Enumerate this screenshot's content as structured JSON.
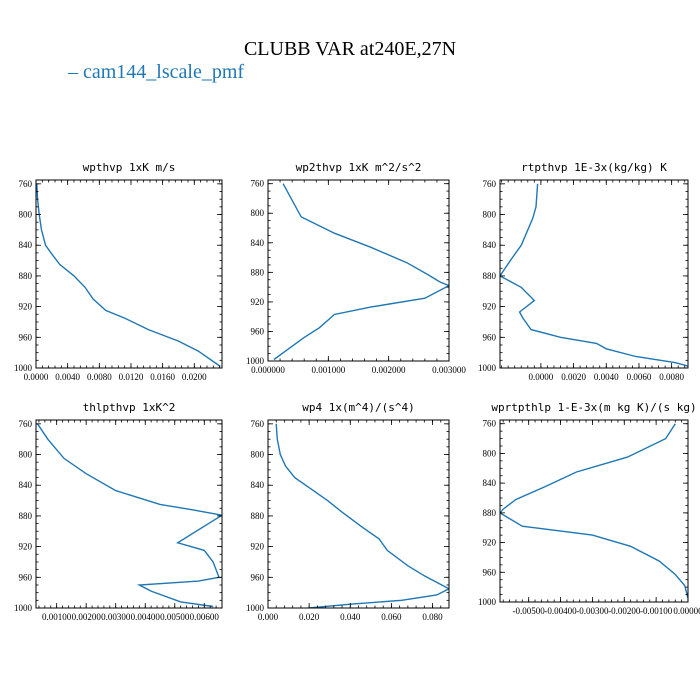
{
  "figure": {
    "title": "CLUBB VAR at240E,27N",
    "legend_label": "– cam144_lscale_pmf",
    "series_color": "#1f77b4"
  },
  "chart_data": [
    {
      "type": "line",
      "title": "wpthvp  1xK m/s",
      "xlim": [
        0,
        0.0235
      ],
      "ylim": [
        1000,
        755
      ],
      "x_ticks": [
        0,
        0.004,
        0.008,
        0.012,
        0.016,
        0.02
      ],
      "x_tick_labels": [
        "0.0000",
        "0.0040",
        "0.0080",
        "0.0120",
        "0.0160",
        "0.0200"
      ],
      "y_ticks": [
        760,
        800,
        840,
        880,
        920,
        960,
        1000
      ],
      "y_tick_labels": [
        "760",
        "800",
        "840",
        "880",
        "920",
        "960",
        "1000"
      ],
      "series": [
        {
          "x": [
            0.0001,
            0.0002,
            0.0004,
            0.0007,
            0.0012,
            0.0019,
            0.003,
            0.0048,
            0.0062,
            0.0072,
            0.0088,
            0.0112,
            0.0142,
            0.018,
            0.0205,
            0.0233
          ],
          "y": [
            760,
            780,
            800,
            820,
            840,
            850,
            865,
            880,
            895,
            910,
            925,
            935,
            950,
            965,
            978,
            998
          ]
        }
      ]
    },
    {
      "type": "line",
      "title": "wp2thvp  1xK m^2/s^2",
      "xlim": [
        0,
        0.003
      ],
      "ylim": [
        1000,
        755
      ],
      "x_ticks": [
        0,
        0.001,
        0.002,
        0.003
      ],
      "x_tick_labels": [
        "0.000000",
        "0.001000",
        "0.002000",
        "0.003000"
      ],
      "y_ticks": [
        760,
        800,
        840,
        880,
        920,
        960,
        1000
      ],
      "y_tick_labels": [
        "760",
        "800",
        "840",
        "880",
        "920",
        "960",
        "1000"
      ],
      "series": [
        {
          "x": [
            0.00025,
            0.00055,
            0.0011,
            0.0017,
            0.0023,
            0.00265,
            0.00285,
            0.003,
            0.0026,
            0.0017,
            0.0011,
            0.00085,
            0.0006,
            0.00035,
            0.0001
          ],
          "y": [
            760,
            805,
            827,
            846,
            867,
            883,
            893,
            898,
            915,
            927,
            937,
            955,
            968,
            983,
            998
          ]
        }
      ]
    },
    {
      "type": "line",
      "title": "rtpthvp  1E-3x(kg/kg) K",
      "xlim": [
        -0.0025,
        0.009
      ],
      "ylim": [
        1000,
        755
      ],
      "x_ticks": [
        0,
        0.002,
        0.004,
        0.006,
        0.008
      ],
      "x_tick_labels": [
        "0.0000",
        "0.0020",
        "0.0040",
        "0.0060",
        "0.0080"
      ],
      "y_ticks": [
        760,
        800,
        840,
        880,
        920,
        960,
        1000
      ],
      "y_tick_labels": [
        "760",
        "800",
        "840",
        "880",
        "920",
        "960",
        "1000"
      ],
      "series": [
        {
          "x": [
            -0.0002,
            -0.0003,
            -0.0005,
            -0.0009,
            -0.0012,
            -0.0018,
            -0.0025,
            -0.0012,
            -0.0004,
            -0.0013,
            -0.0011,
            -0.0006,
            0.0012,
            0.0034,
            0.004,
            0.0058,
            0.0082,
            0.0091
          ],
          "y": [
            760,
            790,
            805,
            825,
            840,
            858,
            880,
            895,
            912,
            927,
            935,
            950,
            960,
            968,
            975,
            985,
            993,
            998
          ]
        }
      ]
    },
    {
      "type": "line",
      "title": "thlpthvp  1xK^2",
      "xlim": [
        0.0003,
        0.0066
      ],
      "ylim": [
        1000,
        755
      ],
      "x_ticks": [
        0.001,
        0.002,
        0.003,
        0.004,
        0.005,
        0.006
      ],
      "x_tick_labels": [
        "0.00100",
        "0.00200",
        "0.00300",
        "0.00400",
        "0.00500",
        "0.00600"
      ],
      "y_ticks": [
        760,
        800,
        840,
        880,
        920,
        960,
        1000
      ],
      "y_tick_labels": [
        "760",
        "800",
        "840",
        "880",
        "920",
        "960",
        "1000"
      ],
      "series": [
        {
          "x": [
            0.00035,
            0.0007,
            0.00125,
            0.002,
            0.003,
            0.0045,
            0.0056,
            0.0066,
            0.0051,
            0.006,
            0.0063,
            0.0065,
            0.0058,
            0.0038,
            0.0042,
            0.0052,
            0.0063
          ],
          "y": [
            760,
            780,
            805,
            825,
            847,
            865,
            872,
            879,
            915,
            925,
            940,
            960,
            965,
            970,
            978,
            992,
            998
          ]
        }
      ]
    },
    {
      "type": "line",
      "title": "wp4  1x(m^4)/(s^4)",
      "xlim": [
        0,
        0.088
      ],
      "ylim": [
        1000,
        755
      ],
      "x_ticks": [
        0,
        0.02,
        0.04,
        0.06,
        0.08
      ],
      "x_tick_labels": [
        "0.000",
        "0.020",
        "0.040",
        "0.060",
        "0.080"
      ],
      "y_ticks": [
        760,
        800,
        840,
        880,
        920,
        960,
        1000
      ],
      "y_tick_labels": [
        "760",
        "800",
        "840",
        "880",
        "920",
        "960",
        "1000"
      ],
      "series": [
        {
          "x": [
            0.004,
            0.0045,
            0.006,
            0.0085,
            0.013,
            0.021,
            0.029,
            0.036,
            0.046,
            0.054,
            0.058,
            0.068,
            0.076,
            0.083,
            0.088,
            0.082,
            0.065,
            0.04,
            0.02
          ],
          "y": [
            760,
            780,
            800,
            815,
            830,
            845,
            860,
            875,
            895,
            910,
            925,
            945,
            958,
            968,
            975,
            983,
            990,
            995,
            1000
          ]
        }
      ]
    },
    {
      "type": "line",
      "title": "wprtpthlp  1-E-3x(m kg K)/(s kg)",
      "xlim": [
        -0.0059,
        0.0
      ],
      "ylim": [
        1000,
        755
      ],
      "x_ticks": [
        -0.005,
        -0.004,
        -0.003,
        -0.002,
        -0.001,
        0
      ],
      "x_tick_labels": [
        "-0.00500",
        "-0.00400",
        "-0.00300",
        "-0.00200",
        "-0.00100",
        "0.00000"
      ],
      "y_ticks": [
        760,
        800,
        840,
        880,
        920,
        960,
        1000
      ],
      "y_tick_labels": [
        "760",
        "800",
        "840",
        "880",
        "920",
        "960",
        "1000"
      ],
      "series": [
        {
          "x": [
            -0.0004,
            -0.0007,
            -0.0019,
            -0.0035,
            -0.0045,
            -0.0054,
            -0.0058,
            -0.0059,
            -0.0052,
            -0.003,
            -0.0018,
            -0.0009,
            -0.0004,
            -0.0001,
            0.0
          ],
          "y": [
            760,
            780,
            805,
            825,
            845,
            862,
            875,
            880,
            898,
            910,
            925,
            945,
            963,
            978,
            995
          ]
        }
      ]
    }
  ]
}
